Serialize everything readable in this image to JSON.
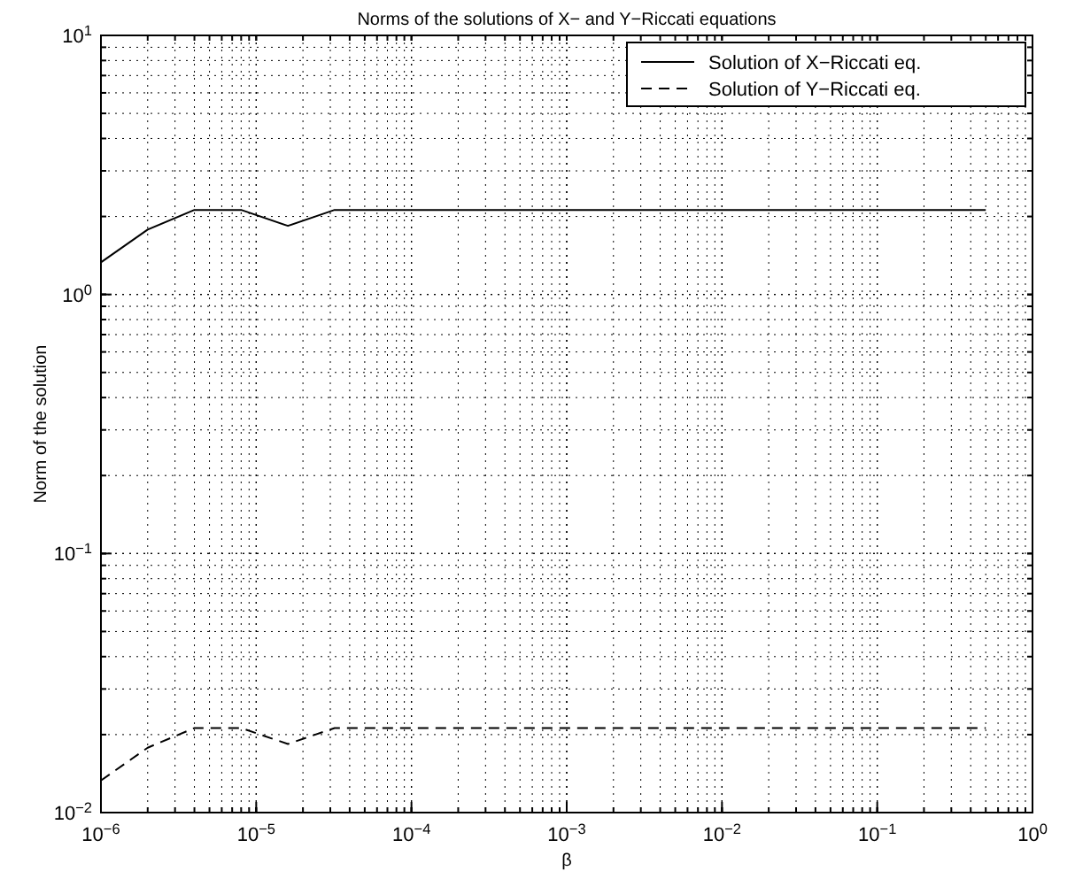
{
  "chart_data": {
    "type": "line",
    "title": "Norms of the solutions of X− and Y−Riccati equations",
    "xlabel": "β",
    "ylabel": "Norm of the solution",
    "log": "xy",
    "grid": true,
    "legend": "top right",
    "marker": "none",
    "x": [
      1e-06,
      2e-06,
      4e-06,
      8e-06,
      1.6e-05,
      3.2e-05,
      0.5
    ],
    "xlim": [
      1e-06,
      1
    ],
    "ylim": [
      0.01,
      10
    ],
    "xticks": [
      {
        "value": 1e-06,
        "label": "10$^{−6}$"
      },
      {
        "value": 1e-05,
        "label": "10$^{−5}$"
      },
      {
        "value": 0.0001,
        "label": "10$^{−4}$"
      },
      {
        "value": 0.001,
        "label": "10$^{−3}$"
      },
      {
        "value": 0.01,
        "label": "10$^{−2}$"
      },
      {
        "value": 0.1,
        "label": "10$^{−1}$"
      },
      {
        "value": 1,
        "label": "10$^{0}$"
      }
    ],
    "yticks": [
      {
        "value": 0.01,
        "label": "10$^{−2}$"
      },
      {
        "value": 0.1,
        "label": "10$^{−1}$"
      },
      {
        "value": 1,
        "label": "10$^{0}$"
      },
      {
        "value": 10,
        "label": "10$^{1}$"
      }
    ],
    "series": [
      {
        "name": "Solution of X−Riccati eq.",
        "color": "#000000",
        "line_style": "solid",
        "values": [
          1.33,
          1.78,
          2.12,
          2.12,
          1.84,
          2.12,
          2.12
        ]
      },
      {
        "name": "Solution of Y−Riccati eq.",
        "color": "#000000",
        "line_style": "dashed",
        "values": [
          0.0133,
          0.0178,
          0.0212,
          0.0212,
          0.0184,
          0.0212,
          0.0212
        ]
      }
    ]
  }
}
